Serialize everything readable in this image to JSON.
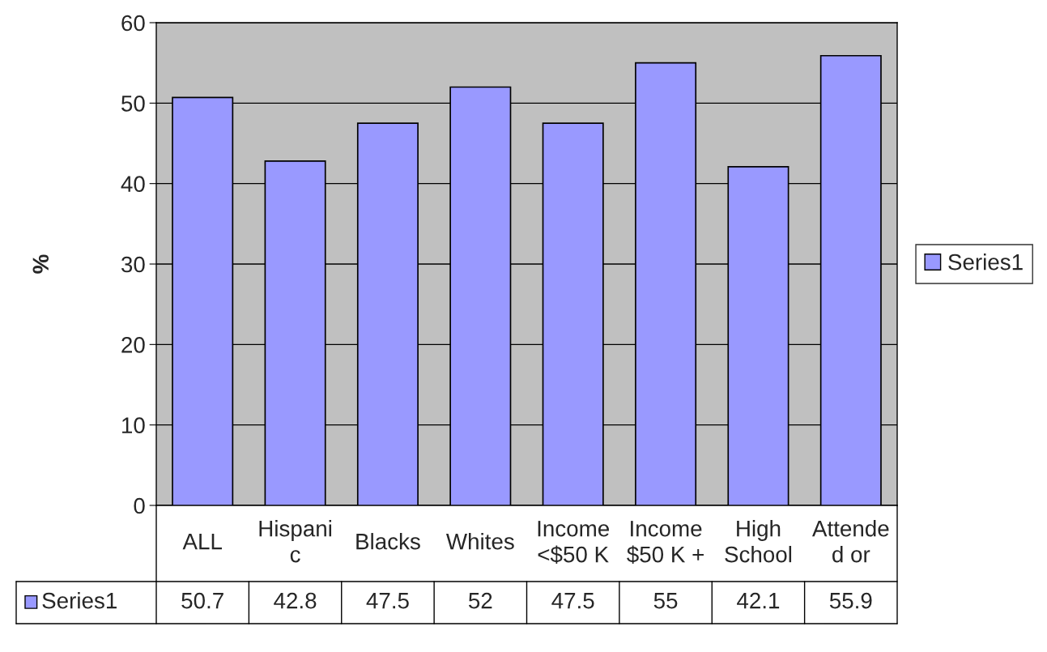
{
  "chart_data": {
    "type": "bar",
    "categories": [
      "ALL",
      "Hispanic",
      "Blacks",
      "Whites",
      "Income <$50 K",
      "Income $50 K +",
      "High School",
      "Attended or"
    ],
    "series": [
      {
        "name": "Series1",
        "color": "#9999ff",
        "values": [
          50.7,
          42.8,
          47.5,
          52,
          47.5,
          55,
          42.1,
          55.9
        ]
      }
    ],
    "ylabel": "%",
    "ylim": [
      0,
      60
    ],
    "yticks": [
      0,
      10,
      20,
      30,
      40,
      50,
      60
    ],
    "grid": "y",
    "legend": "right",
    "data_labels": true
  }
}
